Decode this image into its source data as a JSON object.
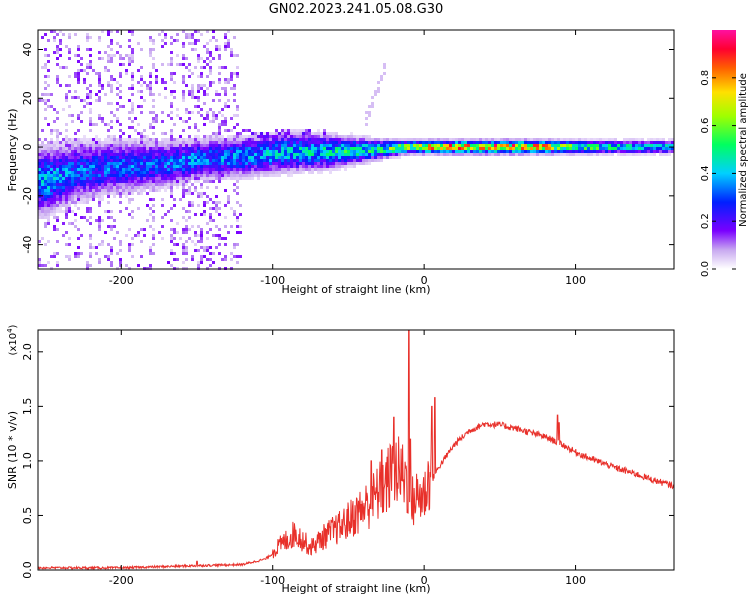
{
  "title": "GN02.2023.241.05.08.G30",
  "colors": {
    "snr_line": "#e8302a",
    "axis": "#000000"
  },
  "chart_data": [
    {
      "type": "heatmap",
      "xlabel": "Height of straight line (km)",
      "ylabel": "Frequency (Hz)",
      "xlim": [
        -255,
        165
      ],
      "ylim": [
        -50,
        48
      ],
      "xticks": [
        -200,
        -100,
        0,
        100
      ],
      "yticks": [
        -40,
        -20,
        0,
        20,
        40
      ],
      "colorbar": {
        "label": "Normalized spectral amplitude",
        "range": [
          0.0,
          1.0
        ],
        "ticks": [
          "0.0",
          "0.2",
          "0.4",
          "0.6",
          "0.8"
        ],
        "colormap": "gist_rainbow_r"
      },
      "ridge": [
        {
          "x": -250,
          "y": -14,
          "width": 10,
          "amp": 0.45
        },
        {
          "x": -230,
          "y": -10,
          "width": 9,
          "amp": 0.35
        },
        {
          "x": -200,
          "y": -8,
          "width": 8,
          "amp": 0.35
        },
        {
          "x": -170,
          "y": -7,
          "width": 7,
          "amp": 0.35
        },
        {
          "x": -150,
          "y": -5,
          "width": 6,
          "amp": 0.4
        },
        {
          "x": -120,
          "y": -4,
          "width": 6,
          "amp": 0.4
        },
        {
          "x": -90,
          "y": -2,
          "width": 6,
          "amp": 0.45
        },
        {
          "x": -60,
          "y": -2,
          "width": 5,
          "amp": 0.5
        },
        {
          "x": -30,
          "y": -1,
          "width": 3,
          "amp": 0.55
        },
        {
          "x": -10,
          "y": 0,
          "width": 2,
          "amp": 0.7
        },
        {
          "x": 0,
          "y": 0,
          "width": 2,
          "amp": 0.85
        },
        {
          "x": 40,
          "y": 0,
          "width": 2,
          "amp": 0.95
        },
        {
          "x": 75,
          "y": 0,
          "width": 2,
          "amp": 0.9
        },
        {
          "x": 100,
          "y": 0,
          "width": 2,
          "amp": 0.65
        },
        {
          "x": 130,
          "y": 0,
          "width": 2,
          "amp": 0.5
        },
        {
          "x": 165,
          "y": 0,
          "width": 2,
          "amp": 0.45
        }
      ]
    },
    {
      "type": "line",
      "xlabel": "Height of straight line (km)",
      "ylabel": "SNR (10 * v/v)",
      "yscale_label": "(x10",
      "yscale_exp": "4",
      "yscale_close": ")",
      "xlim": [
        -255,
        165
      ],
      "ylim": [
        0.0,
        2.2
      ],
      "xticks": [
        -200,
        -100,
        0,
        100
      ],
      "yticks": [
        "0.0",
        "0.5",
        "1.0",
        "1.5",
        "2.0"
      ],
      "series": [
        {
          "values_envelope": [
            [
              -255,
              0.02
            ],
            [
              -200,
              0.02
            ],
            [
              -150,
              0.04
            ],
            [
              -120,
              0.05
            ],
            [
              -105,
              0.1
            ],
            [
              -95,
              0.2
            ],
            [
              -85,
              0.3
            ],
            [
              -75,
              0.18
            ],
            [
              -65,
              0.28
            ],
            [
              -55,
              0.35
            ],
            [
              -45,
              0.45
            ],
            [
              -35,
              0.55
            ],
            [
              -25,
              0.7
            ],
            [
              -20,
              0.8
            ],
            [
              -12,
              0.75
            ],
            [
              -8,
              0.55
            ],
            [
              -4,
              0.6
            ],
            [
              0,
              0.6
            ],
            [
              5,
              0.82
            ],
            [
              10,
              0.95
            ],
            [
              20,
              1.15
            ],
            [
              30,
              1.28
            ],
            [
              40,
              1.34
            ],
            [
              50,
              1.33
            ],
            [
              60,
              1.3
            ],
            [
              70,
              1.26
            ],
            [
              80,
              1.22
            ],
            [
              90,
              1.16
            ],
            [
              100,
              1.08
            ],
            [
              110,
              1.02
            ],
            [
              120,
              0.97
            ],
            [
              130,
              0.92
            ],
            [
              140,
              0.88
            ],
            [
              150,
              0.83
            ],
            [
              160,
              0.79
            ],
            [
              165,
              0.77
            ]
          ],
          "spikes": [
            [
              -10,
              2.2
            ],
            [
              -9,
              1.2
            ],
            [
              -20,
              1.4
            ],
            [
              -28,
              1.1
            ],
            [
              -35,
              1.0
            ],
            [
              5,
              1.5
            ],
            [
              7,
              1.58
            ],
            [
              88,
              1.42
            ],
            [
              89,
              1.35
            ],
            [
              -150,
              0.08
            ]
          ]
        }
      ]
    }
  ]
}
